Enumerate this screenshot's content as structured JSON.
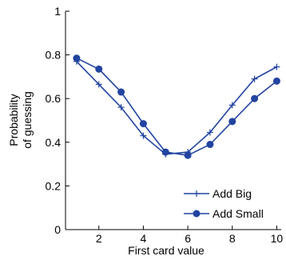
{
  "chart_data": {
    "type": "line",
    "title": "",
    "xlabel": "First card value",
    "ylabel_lines": [
      "Probability",
      "of guessing"
    ],
    "xlim": [
      0.5,
      10.2
    ],
    "ylim": [
      0,
      1
    ],
    "xticks": [
      2,
      4,
      6,
      8,
      10
    ],
    "xtick_labels": [
      "2",
      "4",
      "6",
      "8",
      "10"
    ],
    "yticks": [
      0,
      0.2,
      0.4,
      0.6,
      0.8,
      1
    ],
    "ytick_labels": [
      "0",
      "0.2",
      "0.4",
      "0.6",
      "0.8",
      "1"
    ],
    "grid": false,
    "legend_position": "bottom-right",
    "x": [
      1,
      2,
      3,
      4,
      5,
      6,
      7,
      8,
      9,
      10
    ],
    "series": [
      {
        "name": "Add Big",
        "marker": "plus",
        "color": "#2244a0",
        "values": [
          0.77,
          0.665,
          0.56,
          0.43,
          0.345,
          0.355,
          0.445,
          0.57,
          0.69,
          0.745
        ]
      },
      {
        "name": "Add Small",
        "marker": "circle",
        "color": "#2244a0",
        "values": [
          0.785,
          0.735,
          0.63,
          0.485,
          0.355,
          0.34,
          0.39,
          0.495,
          0.6,
          0.68
        ]
      }
    ]
  }
}
